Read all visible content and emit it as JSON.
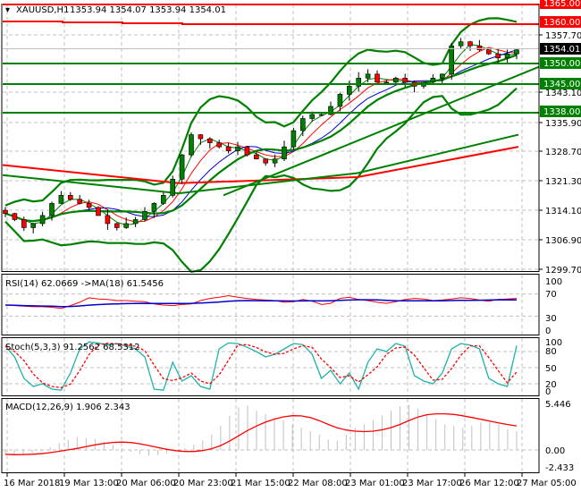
{
  "header": {
    "symbol": "XAUUSD,H1",
    "ohlc": "1353.94 1354.07 1353.94 1354.01"
  },
  "price_axis": {
    "ticks": [
      "1357.70",
      "1343.10",
      "1335.90",
      "1328.70",
      "1321.30",
      "1314.10",
      "1306.90",
      "1299.70"
    ],
    "levels": [
      {
        "label": "1365.00",
        "color": "#ff0000"
      },
      {
        "label": "1360.00",
        "color": "#ff0000"
      },
      {
        "label": "1354.01",
        "color": "#000000"
      },
      {
        "label": "1350.00",
        "color": "#008000"
      },
      {
        "label": "1345.00",
        "color": "#008000"
      },
      {
        "label": "1338.00",
        "color": "#008000"
      }
    ]
  },
  "rsi": {
    "label": "RSI(14) 62.0669  ->MA(18) 61.5456",
    "ticks": [
      "100",
      "70",
      "30",
      "0"
    ]
  },
  "stoch": {
    "label": "Stoch(5,3,3) 91.2562 68.5312",
    "ticks": [
      "100",
      "80",
      "50",
      "20",
      "0"
    ]
  },
  "macd": {
    "label": "MACD(12,26,9) 1.906 2.343",
    "ticks": [
      "5.446",
      "0.00",
      "-2.433"
    ]
  },
  "time_axis": [
    "16 Mar 2018",
    "19 Mar 13:00",
    "20 Mar 06:00",
    "20 Mar 23:00",
    "21 Mar 15:00",
    "22 Mar 08:00",
    "23 Mar 01:00",
    "23 Mar 17:00",
    "26 Mar 12:00",
    "27 Mar 05:00"
  ],
  "colors": {
    "bull": "#008000",
    "bear": "#ff0000",
    "resistance": "#ff0000",
    "support": "#008000",
    "rsi": "#ff0000",
    "rsi_ma": "#0000cc",
    "stoch_main": "#20b2aa",
    "stoch_signal": "#ff0000",
    "macd_hist": "#c0c0c0",
    "macd_signal": "#ff0000"
  },
  "chart_data": [
    {
      "type": "candlestick",
      "title": "XAUUSD,H1",
      "ylabel": "Price",
      "ylim": [
        1297,
        1366
      ],
      "x_labels": [
        "16 Mar 2018",
        "19 Mar 13:00",
        "20 Mar 06:00",
        "20 Mar 23:00",
        "21 Mar 15:00",
        "22 Mar 08:00",
        "23 Mar 01:00",
        "23 Mar 17:00",
        "26 Mar 12:00",
        "27 Mar 05:00"
      ],
      "last_ohlc": {
        "open": 1353.94,
        "high": 1354.07,
        "low": 1353.94,
        "close": 1354.01
      },
      "horizontal_levels": [
        1365.0,
        1360.0,
        1350.0,
        1345.0,
        1338.0
      ],
      "current_price": 1354.01,
      "approx_close_path": [
        1313.5,
        1312,
        1310,
        1311,
        1313,
        1316,
        1318,
        1317,
        1316,
        1315,
        1313,
        1311,
        1310,
        1311,
        1312,
        1314,
        1316,
        1318,
        1322,
        1328,
        1333,
        1332,
        1331,
        1330,
        1329,
        1330,
        1328,
        1327,
        1326,
        1327,
        1330,
        1334,
        1337,
        1338,
        1338,
        1340,
        1343,
        1345,
        1347,
        1348,
        1346,
        1346,
        1347,
        1346,
        1345,
        1346,
        1347,
        1348,
        1355,
        1356,
        1355,
        1354,
        1353,
        1352,
        1353,
        1354
      ],
      "grid": true
    },
    {
      "type": "line",
      "title": "RSI(14)",
      "series": [
        {
          "name": "RSI(14)",
          "last": 62.0669
        },
        {
          "name": "MA(18)",
          "last": 61.5456
        }
      ],
      "ylim": [
        0,
        100
      ],
      "levels": [
        70,
        30
      ]
    },
    {
      "type": "line",
      "title": "Stoch(5,3,3)",
      "series": [
        {
          "name": "%K",
          "last": 91.2562
        },
        {
          "name": "%D",
          "last": 68.5312
        }
      ],
      "ylim": [
        0,
        100
      ],
      "levels": [
        80,
        50,
        20
      ]
    },
    {
      "type": "bar",
      "title": "MACD(12,26,9)",
      "series": [
        {
          "name": "MACD",
          "last": 1.906
        },
        {
          "name": "Signal",
          "last": 2.343
        }
      ],
      "ylim": [
        -2.433,
        5.446
      ]
    }
  ]
}
